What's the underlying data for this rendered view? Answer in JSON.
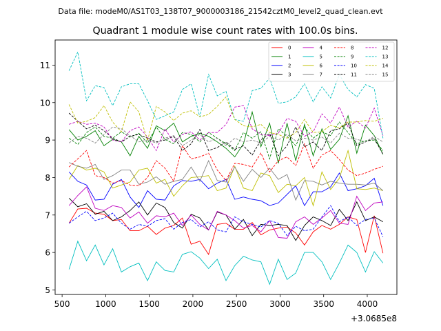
{
  "header": {
    "file_text": "Data file: modeM0/AS1T03_138T07_9000003186_21542cztM0_level2_quad_clean.evt"
  },
  "chart_data": {
    "type": "line",
    "title": "Quadrant 1 module wise count rates with 100.0s bins.",
    "xlabel": "",
    "ylabel": "",
    "x_offset_label": "+3.0685e8",
    "xlim": [
      420,
      4340
    ],
    "ylim": [
      4.88,
      11.67
    ],
    "xticks": [
      500,
      1000,
      1500,
      2000,
      2500,
      3000,
      3500,
      4000
    ],
    "yticks": [
      5,
      6,
      7,
      8,
      9,
      10,
      11
    ],
    "grid": false,
    "legend_position": "top-right",
    "x": [
      580,
      680,
      780,
      880,
      980,
      1080,
      1180,
      1280,
      1380,
      1480,
      1580,
      1680,
      1780,
      1880,
      1980,
      2080,
      2180,
      2280,
      2380,
      2480,
      2580,
      2680,
      2780,
      2880,
      2980,
      3080,
      3180,
      3280,
      3380,
      3480,
      3580,
      3680,
      3780,
      3880,
      3980,
      4080,
      4180
    ],
    "series": [
      {
        "name": "0",
        "color": "#ff0000",
        "dash": "solid",
        "values": [
          6.78,
          7.16,
          7.18,
          7.05,
          7.02,
          6.85,
          6.88,
          6.58,
          6.58,
          6.7,
          6.48,
          6.65,
          6.72,
          6.92,
          6.22,
          6.3,
          5.95,
          6.75,
          6.78,
          6.62,
          6.62,
          6.8,
          6.47,
          6.6,
          6.65,
          6.68,
          6.52,
          6.2,
          6.55,
          6.72,
          6.62,
          6.75,
          6.95,
          6.88,
          6.0,
          6.98,
          5.98
        ]
      },
      {
        "name": "1",
        "color": "#008000",
        "dash": "solid",
        "values": [
          9.28,
          9.0,
          9.1,
          9.25,
          8.85,
          9.02,
          8.95,
          8.58,
          9.1,
          8.78,
          9.38,
          9.25,
          9.45,
          8.95,
          9.1,
          9.18,
          9.1,
          8.95,
          8.78,
          8.55,
          8.9,
          9.75,
          8.82,
          9.45,
          8.38,
          9.45,
          8.45,
          9.42,
          8.58,
          9.3,
          8.75,
          9.02,
          9.65,
          8.65,
          9.4,
          9.12,
          8.62
        ]
      },
      {
        "name": "2",
        "color": "#0000ff",
        "dash": "solid",
        "values": [
          8.15,
          7.9,
          7.8,
          7.4,
          7.42,
          7.82,
          7.95,
          7.48,
          7.2,
          7.65,
          7.42,
          7.4,
          7.78,
          7.92,
          7.9,
          7.95,
          7.7,
          7.85,
          7.95,
          7.42,
          7.48,
          7.42,
          7.38,
          7.25,
          7.32,
          7.55,
          7.78,
          7.25,
          7.62,
          7.62,
          7.75,
          8.12,
          7.65,
          7.7,
          7.78,
          7.98,
          7.25
        ]
      },
      {
        "name": "3",
        "color": "#000000",
        "dash": "solid",
        "values": [
          7.45,
          7.22,
          7.3,
          7.02,
          7.1,
          6.85,
          6.95,
          7.12,
          7.35,
          7.0,
          7.32,
          7.2,
          6.8,
          6.65,
          7.02,
          6.92,
          6.6,
          7.08,
          7.0,
          6.62,
          6.88,
          6.45,
          6.75,
          6.72,
          6.75,
          6.72,
          6.32,
          6.72,
          6.95,
          6.85,
          6.72,
          7.15,
          6.85,
          7.35,
          6.85,
          6.95,
          6.82
        ]
      },
      {
        "name": "4",
        "color": "#bf00bf",
        "dash": "solid",
        "values": [
          7.25,
          7.52,
          7.75,
          7.18,
          7.12,
          7.25,
          7.2,
          6.92,
          7.08,
          6.78,
          6.98,
          6.95,
          7.05,
          6.72,
          7.0,
          6.75,
          6.6,
          7.1,
          7.0,
          6.85,
          6.65,
          6.72,
          6.55,
          6.85,
          6.4,
          6.38,
          6.82,
          6.95,
          6.75,
          6.92,
          7.12,
          6.78,
          6.75,
          7.5,
          7.12,
          7.32,
          7.35
        ]
      },
      {
        "name": "5",
        "color": "#00bfbf",
        "dash": "solid",
        "values": [
          5.55,
          6.3,
          5.78,
          6.2,
          5.67,
          6.1,
          5.48,
          5.62,
          5.72,
          5.25,
          5.75,
          5.52,
          5.48,
          5.95,
          6.02,
          5.85,
          5.57,
          5.82,
          5.25,
          5.65,
          5.9,
          5.8,
          5.75,
          5.15,
          5.82,
          5.28,
          5.45,
          6.0,
          6.0,
          5.75,
          5.28,
          5.72,
          6.2,
          6.0,
          5.48,
          6.02,
          5.72
        ]
      },
      {
        "name": "6",
        "color": "#bfbf00",
        "dash": "solid",
        "values": [
          7.95,
          8.32,
          8.2,
          8.25,
          8.15,
          7.72,
          7.8,
          7.88,
          8.2,
          8.25,
          7.85,
          7.95,
          7.5,
          7.78,
          8.0,
          8.02,
          8.05,
          7.65,
          7.72,
          8.3,
          7.72,
          7.65,
          8.12,
          8.05,
          7.6,
          7.82,
          7.78,
          8.0,
          7.25,
          8.15,
          7.68,
          7.98,
          8.72,
          7.7,
          7.68,
          7.72,
          7.65
        ]
      },
      {
        "name": "7",
        "color": "#808080",
        "dash": "solid",
        "values": [
          8.4,
          8.3,
          8.25,
          8.35,
          7.95,
          8.05,
          8.2,
          8.2,
          7.82,
          7.88,
          8.02,
          7.82,
          7.9,
          7.95,
          8.28,
          7.9,
          8.45,
          7.92,
          7.88,
          8.28,
          7.9,
          8.22,
          8.0,
          8.25,
          7.95,
          8.08,
          7.4,
          7.92,
          7.9,
          7.8,
          7.9,
          7.85,
          7.82,
          7.82,
          7.8,
          7.85,
          7.65
        ]
      },
      {
        "name": "8",
        "color": "#ff0000",
        "dash": "dashed",
        "values": [
          8.28,
          8.5,
          8.72,
          8.05,
          8.0,
          7.85,
          7.92,
          7.8,
          7.78,
          8.0,
          8.45,
          8.25,
          7.9,
          8.85,
          8.5,
          8.55,
          8.65,
          8.2,
          7.92,
          8.38,
          8.35,
          8.28,
          8.65,
          8.15,
          8.45,
          8.55,
          8.32,
          8.9,
          8.25,
          8.6,
          8.72,
          8.48,
          8.2,
          8.05,
          8.12,
          8.22,
          8.3
        ]
      },
      {
        "name": "9",
        "color": "#008000",
        "dash": "dashed",
        "values": [
          9.05,
          8.88,
          9.2,
          9.35,
          9.1,
          9.05,
          9.22,
          9.08,
          9.18,
          8.92,
          9.35,
          9.02,
          8.9,
          9.2,
          9.15,
          8.95,
          9.2,
          9.05,
          8.9,
          8.72,
          9.2,
          9.05,
          9.22,
          8.5,
          9.3,
          9.1,
          8.85,
          9.35,
          9.05,
          9.22,
          9.12,
          9.48,
          9.2,
          8.9,
          8.98,
          9.0,
          8.72
        ]
      },
      {
        "name": "10",
        "color": "#0000ff",
        "dash": "dashed",
        "values": [
          6.78,
          6.95,
          7.1,
          6.85,
          6.92,
          7.05,
          6.78,
          6.62,
          6.75,
          6.7,
          6.85,
          6.9,
          6.62,
          6.8,
          6.88,
          6.68,
          6.82,
          6.6,
          6.55,
          6.95,
          6.82,
          6.75,
          6.68,
          6.85,
          6.78,
          6.45,
          6.7,
          6.58,
          6.62,
          6.95,
          7.25,
          6.82,
          6.95,
          6.72,
          6.88,
          6.92,
          6.42
        ]
      },
      {
        "name": "11",
        "color": "#000000",
        "dash": "dashed",
        "values": [
          9.72,
          9.5,
          9.3,
          9.4,
          9.25,
          9.05,
          8.95,
          9.1,
          9.15,
          9.05,
          8.95,
          9.0,
          9.1,
          8.72,
          8.9,
          9.28,
          8.72,
          8.8,
          8.95,
          8.75,
          8.85,
          8.6,
          9.0,
          9.18,
          8.58,
          8.85,
          9.35,
          8.82,
          8.95,
          8.72,
          9.25,
          9.3,
          9.45,
          8.85,
          8.95,
          9.05,
          8.62
        ]
      },
      {
        "name": "12",
        "color": "#bf00bf",
        "dash": "dashed",
        "values": [
          9.42,
          9.5,
          9.42,
          9.45,
          9.35,
          9.0,
          8.95,
          9.25,
          9.35,
          9.08,
          8.72,
          9.3,
          8.95,
          9.15,
          9.22,
          9.0,
          9.2,
          9.2,
          9.42,
          9.88,
          9.92,
          9.3,
          9.15,
          9.12,
          9.18,
          9.58,
          9.5,
          9.1,
          9.22,
          9.7,
          9.45,
          9.88,
          9.35,
          9.5,
          9.32,
          9.85,
          9.12
        ]
      },
      {
        "name": "13",
        "color": "#00bfbf",
        "dash": "dashed",
        "values": [
          10.85,
          11.35,
          10.05,
          10.45,
          10.4,
          9.92,
          10.42,
          10.5,
          10.5,
          10.05,
          9.55,
          9.65,
          9.75,
          10.35,
          10.5,
          9.62,
          10.75,
          10.18,
          10.3,
          9.55,
          9.5,
          10.32,
          10.38,
          10.65,
          9.98,
          10.02,
          10.15,
          10.5,
          10.02,
          10.42,
          10.12,
          10.75,
          10.35,
          10.15,
          10.48,
          10.38,
          9.05
        ]
      },
      {
        "name": "14",
        "color": "#bfbf00",
        "dash": "dashed",
        "values": [
          9.95,
          9.45,
          9.5,
          9.6,
          9.92,
          9.48,
          9.22,
          10.02,
          9.75,
          8.98,
          9.9,
          9.75,
          9.52,
          9.72,
          9.78,
          9.62,
          9.68,
          9.9,
          10.15,
          9.55,
          9.38,
          9.35,
          9.42,
          9.2,
          9.15,
          9.05,
          9.2,
          9.55,
          9.2,
          9.22,
          9.4,
          9.32,
          9.48,
          9.48,
          9.52,
          9.5,
          9.58
        ]
      },
      {
        "name": "15",
        "color": "#808080",
        "dash": "dashed",
        "values": [
          8.92,
          9.1,
          9.05,
          8.92,
          9.15,
          9.35,
          9.3,
          9.12,
          8.95,
          9.0,
          8.92,
          9.05,
          9.12,
          8.85,
          9.0,
          9.15,
          8.95,
          9.05,
          8.85,
          9.05,
          8.95,
          9.0,
          8.92,
          9.1,
          9.0,
          9.15,
          8.98,
          9.05,
          9.0,
          9.08,
          8.92,
          9.18,
          9.05,
          9.02,
          8.95,
          9.1,
          8.95
        ]
      }
    ]
  }
}
